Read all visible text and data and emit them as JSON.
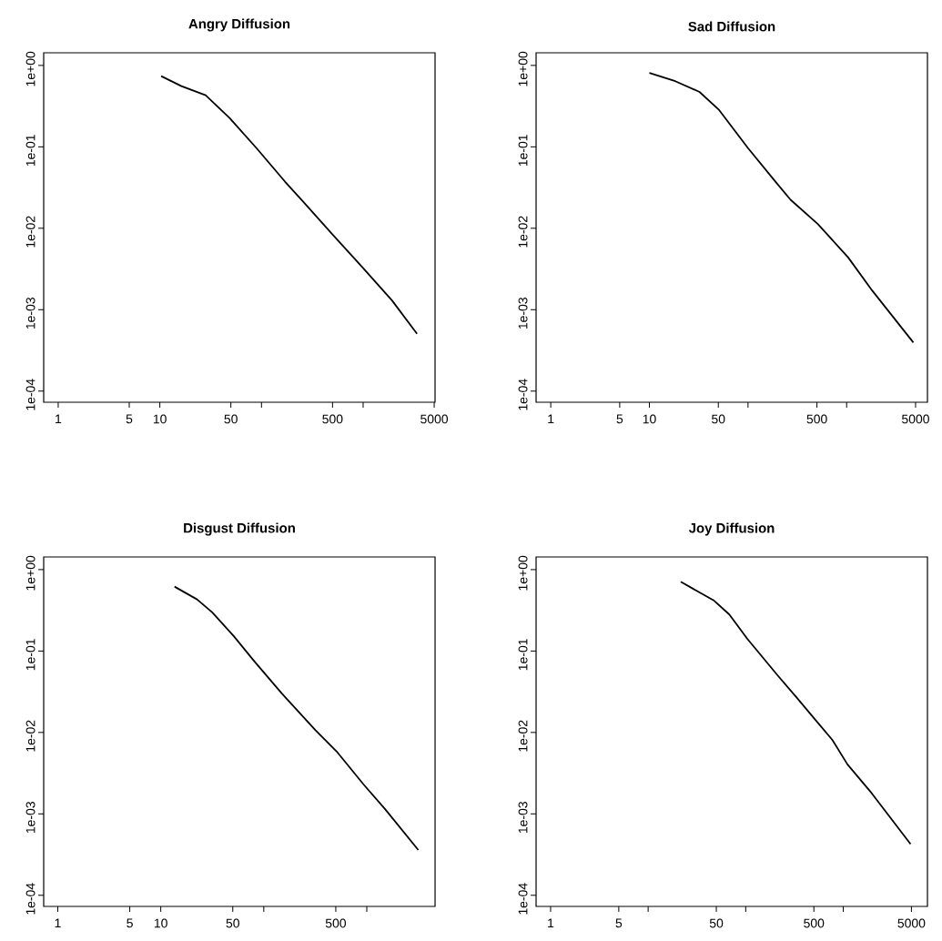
{
  "chart_data": [
    {
      "type": "line",
      "title": "Angry Diffusion",
      "color": "#000000",
      "log": "xy",
      "x": [
        10.3,
        16.3,
        28.2,
        48.5,
        89.7,
        171,
        249,
        460,
        973,
        1923,
        3388
      ],
      "values": [
        0.74,
        0.557,
        0.43,
        0.226,
        0.0958,
        0.0372,
        0.0222,
        0.0094,
        0.00336,
        0.0013,
        0.000507
      ],
      "xlim": [
        0.72,
        5100
      ],
      "ylim": [
        7.3e-05,
        1.43
      ],
      "xticks": [
        1,
        5,
        10,
        50,
        {
          "value": 100,
          "label": null
        },
        500,
        {
          "value": 1000,
          "label": null
        },
        5000
      ],
      "yticks": [
        {
          "value": 0.0001,
          "label": "1e-04"
        },
        {
          "value": 0.001,
          "label": "1e-03"
        },
        {
          "value": 0.01,
          "label": "1e-02"
        },
        {
          "value": 0.1,
          "label": "1e-01"
        },
        {
          "value": 1,
          "label": "1e+00"
        }
      ]
    },
    {
      "type": "line",
      "title": "Sad Diffusion",
      "color": "#000000",
      "log": "xy",
      "x": [
        10.0,
        18.3,
        32.2,
        51,
        100,
        189,
        270,
        510,
        1036,
        1828,
        4750
      ],
      "values": [
        0.81,
        0.64,
        0.473,
        0.283,
        0.0966,
        0.0376,
        0.0224,
        0.0113,
        0.00438,
        0.0017,
        0.000395
      ],
      "xlim": [
        0.71,
        6600
      ],
      "ylim": [
        7.3e-05,
        1.43
      ],
      "xticks": [
        1,
        5,
        10,
        50,
        {
          "value": 100,
          "label": null
        },
        500,
        {
          "value": 1000,
          "label": null
        },
        5000
      ],
      "yticks": [
        {
          "value": 0.0001,
          "label": "1e-04"
        },
        {
          "value": 0.001,
          "label": "1e-03"
        },
        {
          "value": 0.01,
          "label": "1e-02"
        },
        {
          "value": 0.1,
          "label": "1e-01"
        },
        {
          "value": 1,
          "label": "1e+00"
        }
      ]
    },
    {
      "type": "line",
      "title": "Disgust Diffusion",
      "color": "#000000",
      "log": "xy",
      "x": [
        13.6,
        22.5,
        31.6,
        50.8,
        81.6,
        150,
        316,
        508,
        935,
        1500,
        3162
      ],
      "values": [
        0.618,
        0.431,
        0.298,
        0.154,
        0.074,
        0.03,
        0.0107,
        0.00587,
        0.00228,
        0.00115,
        0.00036
      ],
      "xlim": [
        0.73,
        4600
      ],
      "ylim": [
        7.3e-05,
        1.43
      ],
      "xticks": [
        1,
        5,
        10,
        50,
        {
          "value": 100,
          "label": null
        },
        500,
        {
          "value": 1000,
          "label": null
        }
      ],
      "yticks": [
        {
          "value": 0.0001,
          "label": "1e-04"
        },
        {
          "value": 0.001,
          "label": "1e-03"
        },
        {
          "value": 0.01,
          "label": "1e-02"
        },
        {
          "value": 0.1,
          "label": "1e-01"
        },
        {
          "value": 1,
          "label": "1e+00"
        }
      ]
    },
    {
      "type": "line",
      "title": "Joy Diffusion",
      "color": "#000000",
      "log": "xy",
      "x": [
        21.6,
        47.5,
        68,
        104,
        213,
        328,
        503,
        773,
        1104,
        1960,
        4900
      ],
      "values": [
        0.708,
        0.415,
        0.281,
        0.141,
        0.05,
        0.0274,
        0.0149,
        0.0081,
        0.00406,
        0.00179,
        0.000425
      ],
      "xlim": [
        0.71,
        7300
      ],
      "ylim": [
        7.3e-05,
        1.43
      ],
      "xticks": [
        1,
        5,
        {
          "value": 10,
          "label": null
        },
        50,
        {
          "value": 100,
          "label": null
        },
        500,
        {
          "value": 1000,
          "label": null
        },
        5000
      ],
      "yticks": [
        {
          "value": 0.0001,
          "label": "1e-04"
        },
        {
          "value": 0.001,
          "label": "1e-03"
        },
        {
          "value": 0.01,
          "label": "1e-02"
        },
        {
          "value": 0.1,
          "label": "1e-01"
        },
        {
          "value": 1,
          "label": "1e+00"
        }
      ]
    }
  ]
}
